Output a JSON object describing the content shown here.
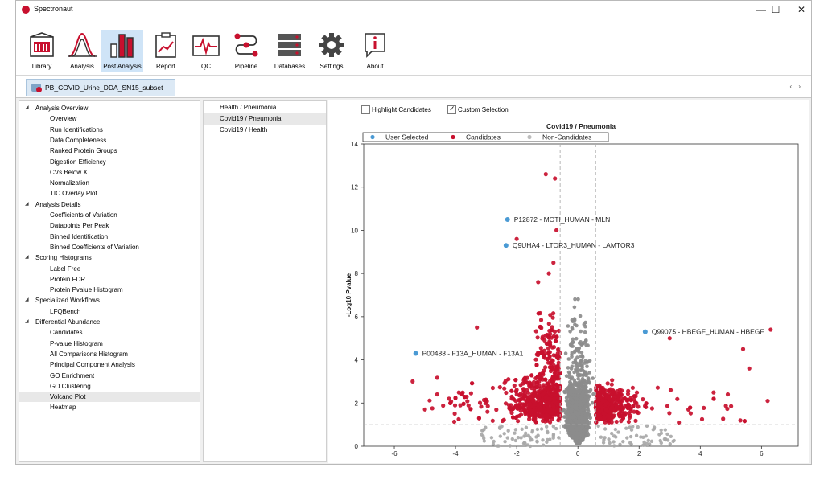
{
  "app": {
    "title": "Spectronaut"
  },
  "window_controls": {
    "minimize": "—",
    "maximize": "☐",
    "close": "✕"
  },
  "ribbon": [
    {
      "label": "Library",
      "icon": "library-icon"
    },
    {
      "label": "Analysis",
      "icon": "analysis-icon"
    },
    {
      "label": "Post Analysis",
      "icon": "post-analysis-icon",
      "active": true
    },
    {
      "label": "Report",
      "icon": "report-icon"
    },
    {
      "label": "QC",
      "icon": "qc-icon"
    },
    {
      "label": "Pipeline",
      "icon": "pipeline-icon"
    },
    {
      "label": "Databases",
      "icon": "databases-icon"
    },
    {
      "label": "Settings",
      "icon": "settings-icon"
    },
    {
      "label": "About",
      "icon": "about-icon"
    }
  ],
  "document_tab": {
    "label": "PB_COVID_Urine_DDA_SN15_subset",
    "nav": "‹ ›"
  },
  "tree": [
    {
      "label": "Analysis Overview",
      "level": 0
    },
    {
      "label": "Overview",
      "level": 1
    },
    {
      "label": "Run Identifications",
      "level": 1
    },
    {
      "label": "Data Completeness",
      "level": 1
    },
    {
      "label": "Ranked Protein Groups",
      "level": 1
    },
    {
      "label": "Digestion Efficiency",
      "level": 1
    },
    {
      "label": "CVs Below X",
      "level": 1
    },
    {
      "label": "Normalization",
      "level": 1
    },
    {
      "label": "TIC Overlay Plot",
      "level": 1
    },
    {
      "label": "Analysis Details",
      "level": 0
    },
    {
      "label": "Coefficients of Variation",
      "level": 1
    },
    {
      "label": "Datapoints Per Peak",
      "level": 1
    },
    {
      "label": "Binned Identification",
      "level": 1
    },
    {
      "label": "Binned Coefficients of Variation",
      "level": 1
    },
    {
      "label": "Scoring Histograms",
      "level": 0
    },
    {
      "label": "Label Free",
      "level": 1
    },
    {
      "label": "Protein FDR",
      "level": 1
    },
    {
      "label": "Protein Pvalue Histogram",
      "level": 1
    },
    {
      "label": "Specialized Workflows",
      "level": 0
    },
    {
      "label": "LFQBench",
      "level": 1
    },
    {
      "label": "Differential Abundance",
      "level": 0
    },
    {
      "label": "Candidates",
      "level": 1
    },
    {
      "label": "P-value Histogram",
      "level": 1
    },
    {
      "label": "All Comparisons Histogram",
      "level": 1
    },
    {
      "label": "Principal Component Analysis",
      "level": 1
    },
    {
      "label": "GO Enrichment",
      "level": 1
    },
    {
      "label": "GO Clustering",
      "level": 1
    },
    {
      "label": "Volcano Plot",
      "level": 1,
      "selected": true
    },
    {
      "label": "Heatmap",
      "level": 1
    }
  ],
  "comparisons": [
    {
      "label": "Health / Pneumonia"
    },
    {
      "label": "Covid19 / Pneumonia",
      "selected": true
    },
    {
      "label": "Covid19 / Health"
    }
  ],
  "options": {
    "highlight_candidates": {
      "label": "Highlight Candidates",
      "checked": false
    },
    "custom_selection": {
      "label": "Custom Selection",
      "checked": true
    }
  },
  "colors": {
    "user_selected": "#4a9ad4",
    "candidates": "#c8102e",
    "non_candidates": "#8c8c8c"
  },
  "chart_data": {
    "type": "scatter",
    "title": "Covid19 / Pneumonia",
    "xlabel": "",
    "ylabel": "-Log10 Pvalue",
    "xlim": [
      -7,
      7.2
    ],
    "ylim": [
      0,
      14
    ],
    "xticks": [
      -6,
      -4,
      -2,
      0,
      2,
      4,
      6
    ],
    "yticks": [
      0,
      2,
      4,
      6,
      8,
      10,
      12,
      14
    ],
    "legend": {
      "position": "top",
      "entries": [
        "User Selected",
        "Candidates",
        "Non-Candidates"
      ]
    },
    "thresholds": {
      "x": [
        -0.58,
        0.58
      ],
      "y": 1.0
    },
    "user_selected": [
      {
        "x": -2.3,
        "y": 10.5,
        "label": "P12872 - MOTI_HUMAN - MLN"
      },
      {
        "x": -2.35,
        "y": 9.3,
        "label": "Q9UHA4 - LTOR3_HUMAN - LAMTOR3"
      },
      {
        "x": 2.2,
        "y": 5.3,
        "label": "Q99075 - HBEGF_HUMAN - HBEGF"
      },
      {
        "x": -5.3,
        "y": 4.3,
        "label": "P00488 - F13A_HUMAN - F13A1"
      }
    ],
    "candidates_sample": [
      {
        "x": -1.05,
        "y": 12.6
      },
      {
        "x": -0.75,
        "y": 12.4
      },
      {
        "x": -2.0,
        "y": 9.6
      },
      {
        "x": -0.7,
        "y": 10.0
      },
      {
        "x": -0.8,
        "y": 8.5
      },
      {
        "x": -0.95,
        "y": 8.0
      },
      {
        "x": -1.3,
        "y": 7.6
      },
      {
        "x": 6.3,
        "y": 5.4
      },
      {
        "x": 5.4,
        "y": 4.5
      },
      {
        "x": 5.6,
        "y": 3.6
      },
      {
        "x": 6.2,
        "y": 2.1
      },
      {
        "x": 4.9,
        "y": 2.4
      },
      {
        "x": -5.4,
        "y": 3.0
      },
      {
        "x": -4.6,
        "y": 2.4
      },
      {
        "x": -5.0,
        "y": 1.7
      },
      {
        "x": 3.3,
        "y": 1.1
      },
      {
        "x": -3.3,
        "y": 5.5
      },
      {
        "x": 3.0,
        "y": 5.0
      }
    ]
  }
}
